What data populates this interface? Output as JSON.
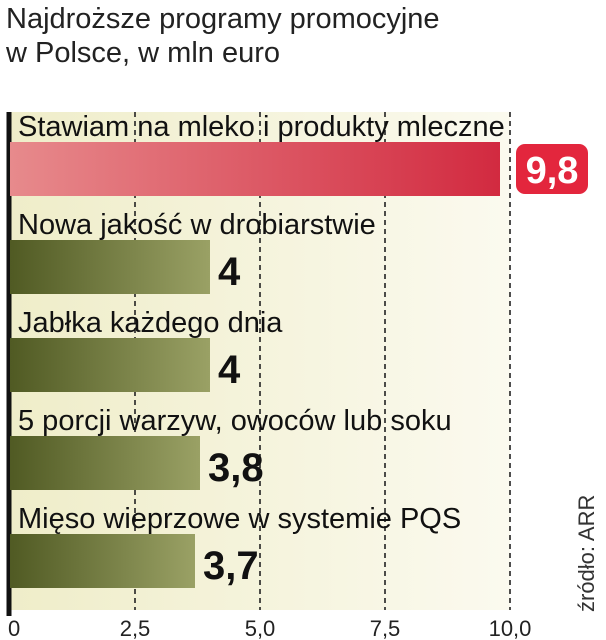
{
  "title": "Najdroższe programy promocyjne\nw Polsce, w mln euro",
  "source": "źródło: ARR",
  "colors": {
    "highlight_bar": "#e0404f",
    "normal_bar": "#6b7637",
    "highlight_badge": "#e3263d",
    "background_band": "#f2f1dc"
  },
  "chart_data": {
    "type": "bar",
    "orientation": "horizontal",
    "title": "Najdroższe programy promocyjne w Polsce, w mln euro",
    "categories": [
      "Stawiam na mleko i produkty mleczne",
      "Nowa jakość w drobiarstwie",
      "Jabłka każdego dnia",
      "5 porcji warzyw, owoców lub soku",
      "Mięso wieprzowe w systemie PQS"
    ],
    "values": [
      9.8,
      4,
      4,
      3.8,
      3.7
    ],
    "value_labels": [
      "9,8",
      "4",
      "4",
      "3,8",
      "3,7"
    ],
    "highlight_index": 0,
    "xlim": [
      0,
      10
    ],
    "x_ticks": [
      0,
      2.5,
      5,
      7.5,
      10
    ],
    "x_tick_labels": [
      "0",
      "2,5",
      "5,0",
      "7,5",
      "10,0"
    ],
    "grid": "dashed vertical",
    "source": "źródło: ARR"
  }
}
